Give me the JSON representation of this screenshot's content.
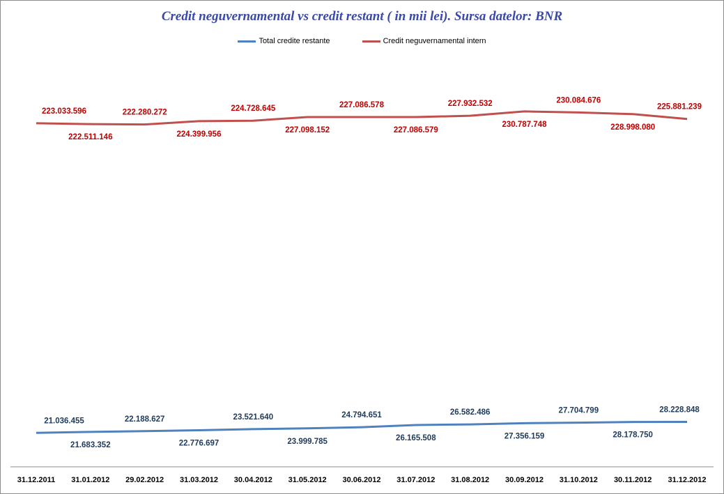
{
  "chart_data": {
    "type": "line",
    "title": "Credit neguvernamental vs credit restant ( in mii lei). Sursa datelor: BNR",
    "xlabel": "",
    "ylabel": "",
    "legend_position": "top-center",
    "grid": false,
    "categories": [
      "31.12.2011",
      "31.01.2012",
      "29.02.2012",
      "31.03.2012",
      "30.04.2012",
      "31.05.2012",
      "30.06.2012",
      "31.07.2012",
      "31.08.2012",
      "30.09.2012",
      "31.10.2012",
      "30.11.2012",
      "31.12.2012"
    ],
    "series": [
      {
        "name": "Total credite restante",
        "color": "#4f81bd",
        "values": [
          21036455,
          21683352,
          22188627,
          22776697,
          23521640,
          23999785,
          24794651,
          26165508,
          26582486,
          27356159,
          27704799,
          28178750,
          28228848
        ],
        "labels": [
          "21.036.455",
          "21.683.352",
          "22.188.627",
          "22.776.697",
          "23.521.640",
          "23.999.785",
          "24.794.651",
          "26.165.508",
          "26.582.486",
          "27.356.159",
          "27.704.799",
          "28.178.750",
          "28.228.848"
        ],
        "label_color": "#1f3b5c"
      },
      {
        "name": "Credit neguvernamental intern",
        "color": "#c0504d",
        "values": [
          223033596,
          222511146,
          222280272,
          224399956,
          224728645,
          227098152,
          227086578,
          227086579,
          227932532,
          230787748,
          230084676,
          228998080,
          225881239
        ],
        "labels": [
          "223.033.596",
          "222.511.146",
          "222.280.272",
          "224.399.956",
          "224.728.645",
          "227.098.152",
          "227.086.578",
          "227.086.579",
          "227.932.532",
          "230.787.748",
          "230.084.676",
          "228.998.080",
          "225.881.239"
        ],
        "label_color": "#c00000"
      }
    ]
  }
}
